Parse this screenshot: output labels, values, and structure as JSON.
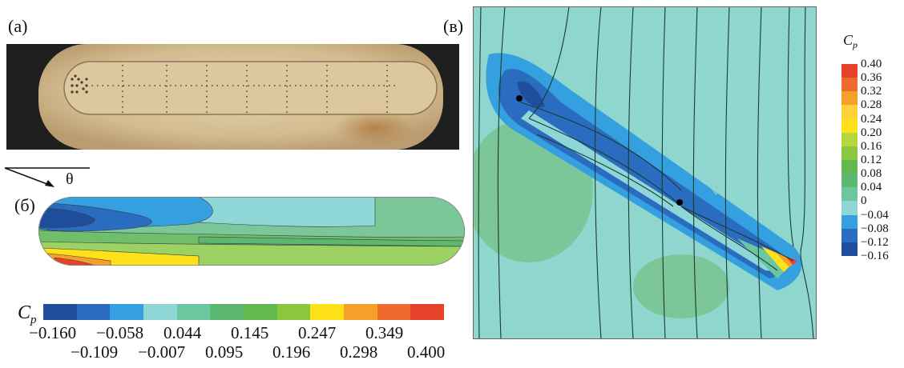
{
  "panels": {
    "a": {
      "label": "(a)"
    },
    "b": {
      "label": "(б)"
    },
    "c": {
      "label": "(в)"
    }
  },
  "angle_symbol": "θ",
  "colorbar_bottom": {
    "symbol": "C",
    "subscript": "p",
    "colors": [
      "#1f4e9c",
      "#2a6cc0",
      "#35a0df",
      "#8fd6d6",
      "#6cc6a0",
      "#5cb870",
      "#62b94e",
      "#8dc63f",
      "#ffe11a",
      "#f6a02a",
      "#f06a2d",
      "#e8412a"
    ],
    "tick_row_top": [
      "−0.160",
      "−0.058",
      "0.044",
      "0.145",
      "0.247",
      "0.349"
    ],
    "tick_row_bottom": [
      "−0.109",
      "−0.007",
      "0.095",
      "0.196",
      "0.298",
      "0.400"
    ]
  },
  "colorbar_right": {
    "symbol": "C",
    "subscript": "p",
    "ticks": [
      "0.40",
      "0.36",
      "0.32",
      "0.28",
      "0.24",
      "0.20",
      "0.16",
      "0.12",
      "0.08",
      "0.04",
      "0",
      "−0.04",
      "−0.08",
      "−0.12",
      "−0.16"
    ],
    "colors": [
      "#e8412a",
      "#f06a2d",
      "#f6a02a",
      "#ffd23a",
      "#ffe11a",
      "#b7d63b",
      "#8dc63f",
      "#62b94e",
      "#5cb870",
      "#6cc6a0",
      "#8fd6d6",
      "#35a0df",
      "#2a6cc0",
      "#1f4e9c"
    ]
  }
}
